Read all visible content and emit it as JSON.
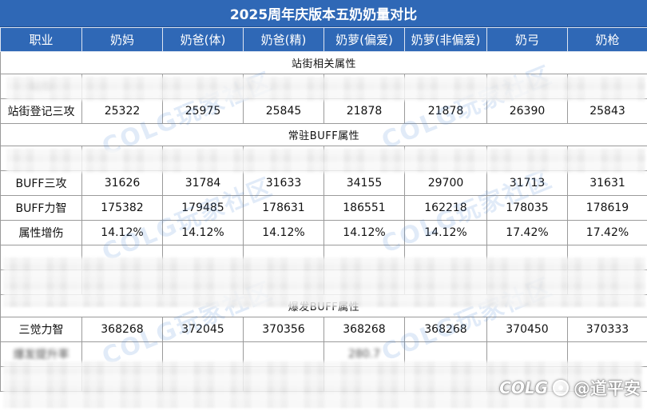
{
  "title": "2025周年庆版本五奶奶量对比",
  "header": {
    "columns": [
      "职业",
      "奶妈",
      "奶爸(体)",
      "奶爸(精)",
      "奶萝(偏爱)",
      "奶萝(非偏爱)",
      "奶弓",
      "奶枪"
    ]
  },
  "sections": [
    {
      "label": "站街相关属性",
      "rows": [
        {
          "label": "站街",
          "values": [
            "",
            "",
            "",
            "",
            "",
            "",
            ""
          ],
          "obscured": true
        },
        {
          "label": "站街登记三攻",
          "values": [
            "25322",
            "25975",
            "25845",
            "21878",
            "21878",
            "26390",
            "25843"
          ],
          "obscured": false
        }
      ]
    },
    {
      "label": "常驻BUFF属性",
      "rows": [
        {
          "label": "",
          "values": [
            "",
            "",
            "",
            "",
            "",
            "",
            ""
          ],
          "obscured": true
        },
        {
          "label": "BUFF三攻",
          "values": [
            "31626",
            "31784",
            "31633",
            "34155",
            "29700",
            "31713",
            "31631"
          ],
          "obscured": false
        },
        {
          "label": "BUFF力智",
          "values": [
            "175382",
            "179485",
            "178631",
            "186551",
            "162218",
            "178035",
            "178619"
          ],
          "obscured": false
        },
        {
          "label": "属性增伤",
          "values": [
            "14.12%",
            "14.12%",
            "14.12%",
            "14.12%",
            "14.12%",
            "17.42%",
            "17.42%"
          ],
          "obscured": false
        },
        {
          "label": "",
          "values": [
            "",
            "",
            "",
            "",
            "",
            "",
            ""
          ],
          "obscured": true
        },
        {
          "label": "",
          "values": [
            "",
            "",
            "",
            "",
            "",
            "",
            ""
          ],
          "obscured": true
        }
      ]
    },
    {
      "label": "爆发BUFF属性",
      "rows": [
        {
          "label": "三觉力智",
          "values": [
            "368268",
            "372045",
            "370356",
            "368268",
            "368268",
            "370450",
            "370333"
          ],
          "obscured": false
        },
        {
          "label": "爆发提升率",
          "values": [
            "",
            "",
            "",
            "280.7",
            "",
            "",
            ""
          ],
          "obscured": true
        },
        {
          "label": "",
          "values": [
            "",
            "",
            "",
            "",
            "",
            "",
            ""
          ],
          "obscured": true
        }
      ]
    }
  ],
  "watermark_text": "COLG玩家社区",
  "corner_mark": {
    "logo": "COLG",
    "author": "@道平安"
  }
}
